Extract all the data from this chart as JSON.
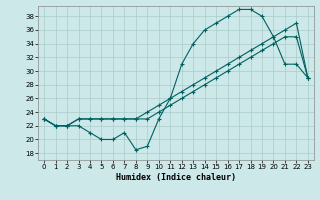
{
  "xlabel": "Humidex (Indice chaleur)",
  "bg_color": "#cce8e8",
  "grid_color": "#aacccc",
  "line_color": "#006060",
  "xlim": [
    -0.5,
    23.5
  ],
  "ylim": [
    17,
    39.5
  ],
  "yticks": [
    18,
    20,
    22,
    24,
    26,
    28,
    30,
    32,
    34,
    36,
    38
  ],
  "xticks": [
    0,
    1,
    2,
    3,
    4,
    5,
    6,
    7,
    8,
    9,
    10,
    11,
    12,
    13,
    14,
    15,
    16,
    17,
    18,
    19,
    20,
    21,
    22,
    23
  ],
  "line1_x": [
    0,
    1,
    2,
    3,
    4,
    5,
    6,
    7,
    8,
    9,
    10,
    11,
    12,
    13,
    14,
    15,
    16,
    17,
    18,
    19,
    20,
    21,
    22,
    23
  ],
  "line1_y": [
    23,
    22,
    22,
    22,
    21,
    20,
    20,
    21,
    18.5,
    19,
    23,
    26,
    31,
    34,
    36,
    37,
    38,
    39,
    39,
    38,
    35,
    31,
    31,
    29
  ],
  "line2_x": [
    0,
    1,
    2,
    3,
    4,
    5,
    6,
    7,
    8,
    9,
    10,
    11,
    12,
    13,
    14,
    15,
    16,
    17,
    18,
    19,
    20,
    21,
    22,
    23
  ],
  "line2_y": [
    23,
    22,
    22,
    23,
    23,
    23,
    23,
    23,
    23,
    24,
    25,
    26,
    27,
    28,
    29,
    30,
    31,
    32,
    33,
    34,
    35,
    36,
    37,
    29
  ],
  "line3_x": [
    0,
    1,
    2,
    3,
    4,
    5,
    6,
    7,
    8,
    9,
    10,
    11,
    12,
    13,
    14,
    15,
    16,
    17,
    18,
    19,
    20,
    21,
    22,
    23
  ],
  "line3_y": [
    23,
    22,
    22,
    23,
    23,
    23,
    23,
    23,
    23,
    23,
    24,
    25,
    26,
    27,
    28,
    29,
    30,
    31,
    32,
    33,
    34,
    35,
    35,
    29
  ]
}
